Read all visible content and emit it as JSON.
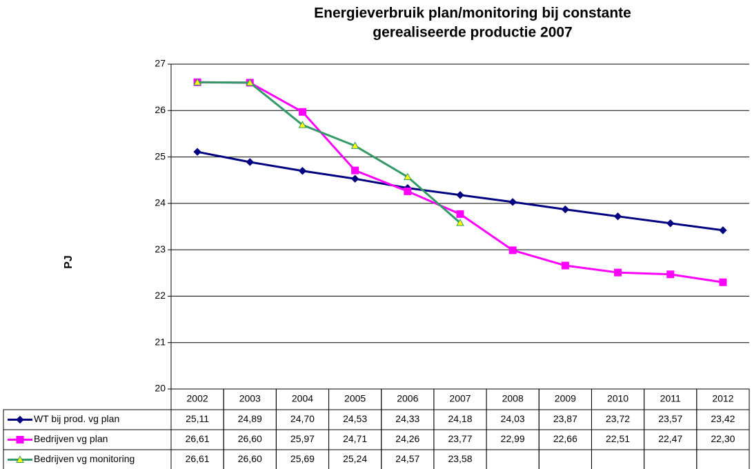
{
  "chart_data": {
    "type": "line",
    "title": [
      "Energieverbruik plan/monitoring bij constante",
      "gerealiseerde productie 2007"
    ],
    "y_label": "PJ",
    "categories": [
      "2002",
      "2003",
      "2004",
      "2005",
      "2006",
      "2007",
      "2008",
      "2009",
      "2010",
      "2011",
      "2012"
    ],
    "ylim": [
      20,
      27
    ],
    "yticks": [
      20,
      21,
      22,
      23,
      24,
      25,
      26,
      27
    ],
    "grid": true,
    "series": [
      {
        "name": "WT bij prod. vg plan",
        "color": "#000080",
        "marker": "diamond",
        "marker_color": "#000080",
        "values": [
          25.11,
          24.89,
          24.7,
          24.53,
          24.33,
          24.18,
          24.03,
          23.87,
          23.72,
          23.57,
          23.42
        ],
        "value_labels": [
          "25,11",
          "24,89",
          "24,70",
          "24,53",
          "24,33",
          "24,18",
          "24,03",
          "23,87",
          "23,72",
          "23,57",
          "23,42"
        ]
      },
      {
        "name": "Bedrijven vg plan",
        "color": "#ff00ff",
        "marker": "square",
        "marker_color": "#ff00ff",
        "values": [
          26.61,
          26.6,
          25.97,
          24.71,
          24.26,
          23.77,
          22.99,
          22.66,
          22.51,
          22.47,
          22.3
        ],
        "value_labels": [
          "26,61",
          "26,60",
          "25,97",
          "24,71",
          "24,26",
          "23,77",
          "22,99",
          "22,66",
          "22,51",
          "22,47",
          "22,30"
        ]
      },
      {
        "name": "Bedrijven vg monitoring",
        "color": "#339966",
        "marker": "triangle",
        "marker_color": "#ffff00",
        "values": [
          26.61,
          26.6,
          25.69,
          25.24,
          24.57,
          23.58,
          null,
          null,
          null,
          null,
          null
        ],
        "value_labels": [
          "26,61",
          "26,60",
          "25,69",
          "25,24",
          "24,57",
          "23,58",
          null,
          null,
          null,
          null,
          null
        ]
      }
    ]
  }
}
